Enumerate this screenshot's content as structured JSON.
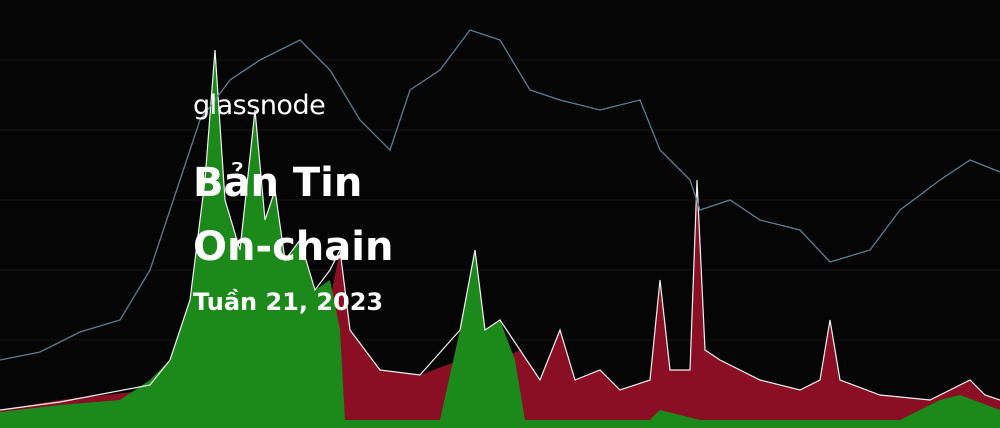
{
  "brand": "glassnode",
  "title_line1": "Bản Tin",
  "title_line2": "On-chain",
  "subtitle": "Tuần 21, 2023"
}
